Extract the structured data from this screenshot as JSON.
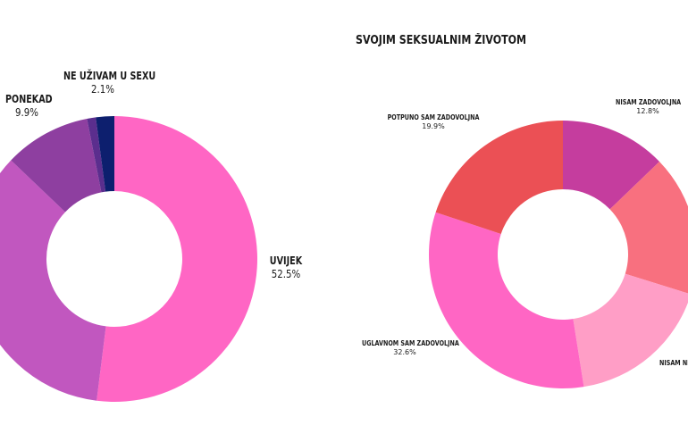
{
  "chart_data": [
    {
      "type": "pie",
      "title": "",
      "slices": [
        {
          "label": "UVIJEK",
          "value": 52.5,
          "color": "#ff66c4"
        },
        {
          "label": "",
          "value": 35.5,
          "color": "#c157bf"
        },
        {
          "label": "PONEKAD",
          "value": 9.9,
          "color": "#8e3fa0"
        },
        {
          "label": "",
          "value": 1.0,
          "color": "#5b2e8e"
        },
        {
          "label": "NE UŽIVAM U SEXU",
          "value": 2.1,
          "color": "#0d1f6e"
        }
      ],
      "value_labels": {
        "UVIJEK": "52.5%",
        "PONEKAD": "9.9%",
        "NE UŽIVAM U SEXU": "2.1%"
      }
    },
    {
      "type": "pie",
      "title": "SVOJIM SEKSUALNIM ŽIVOTOM",
      "slices": [
        {
          "label": "NISAM ZADOVOLJNA",
          "value": 12.8,
          "color": "#c53d9e"
        },
        {
          "label": "",
          "value": 17.0,
          "color": "#f8707f"
        },
        {
          "label": "NISAM NI",
          "value": 17.7,
          "color": "#ff9ec6"
        },
        {
          "label": "UGLAVNOM SAM ZADOVOLJNA",
          "value": 32.6,
          "color": "#ff66c4"
        },
        {
          "label": "POTPUNO SAM ZADOVOLJNA",
          "value": 19.9,
          "color": "#eb5055"
        }
      ],
      "value_labels": {
        "NISAM ZADOVOLJNA": "12.8%",
        "UGLAVNOM SAM ZADOVOLJNA": "32.6%",
        "POTPUNO SAM ZADOVOLJNA": "19.9%"
      }
    }
  ]
}
